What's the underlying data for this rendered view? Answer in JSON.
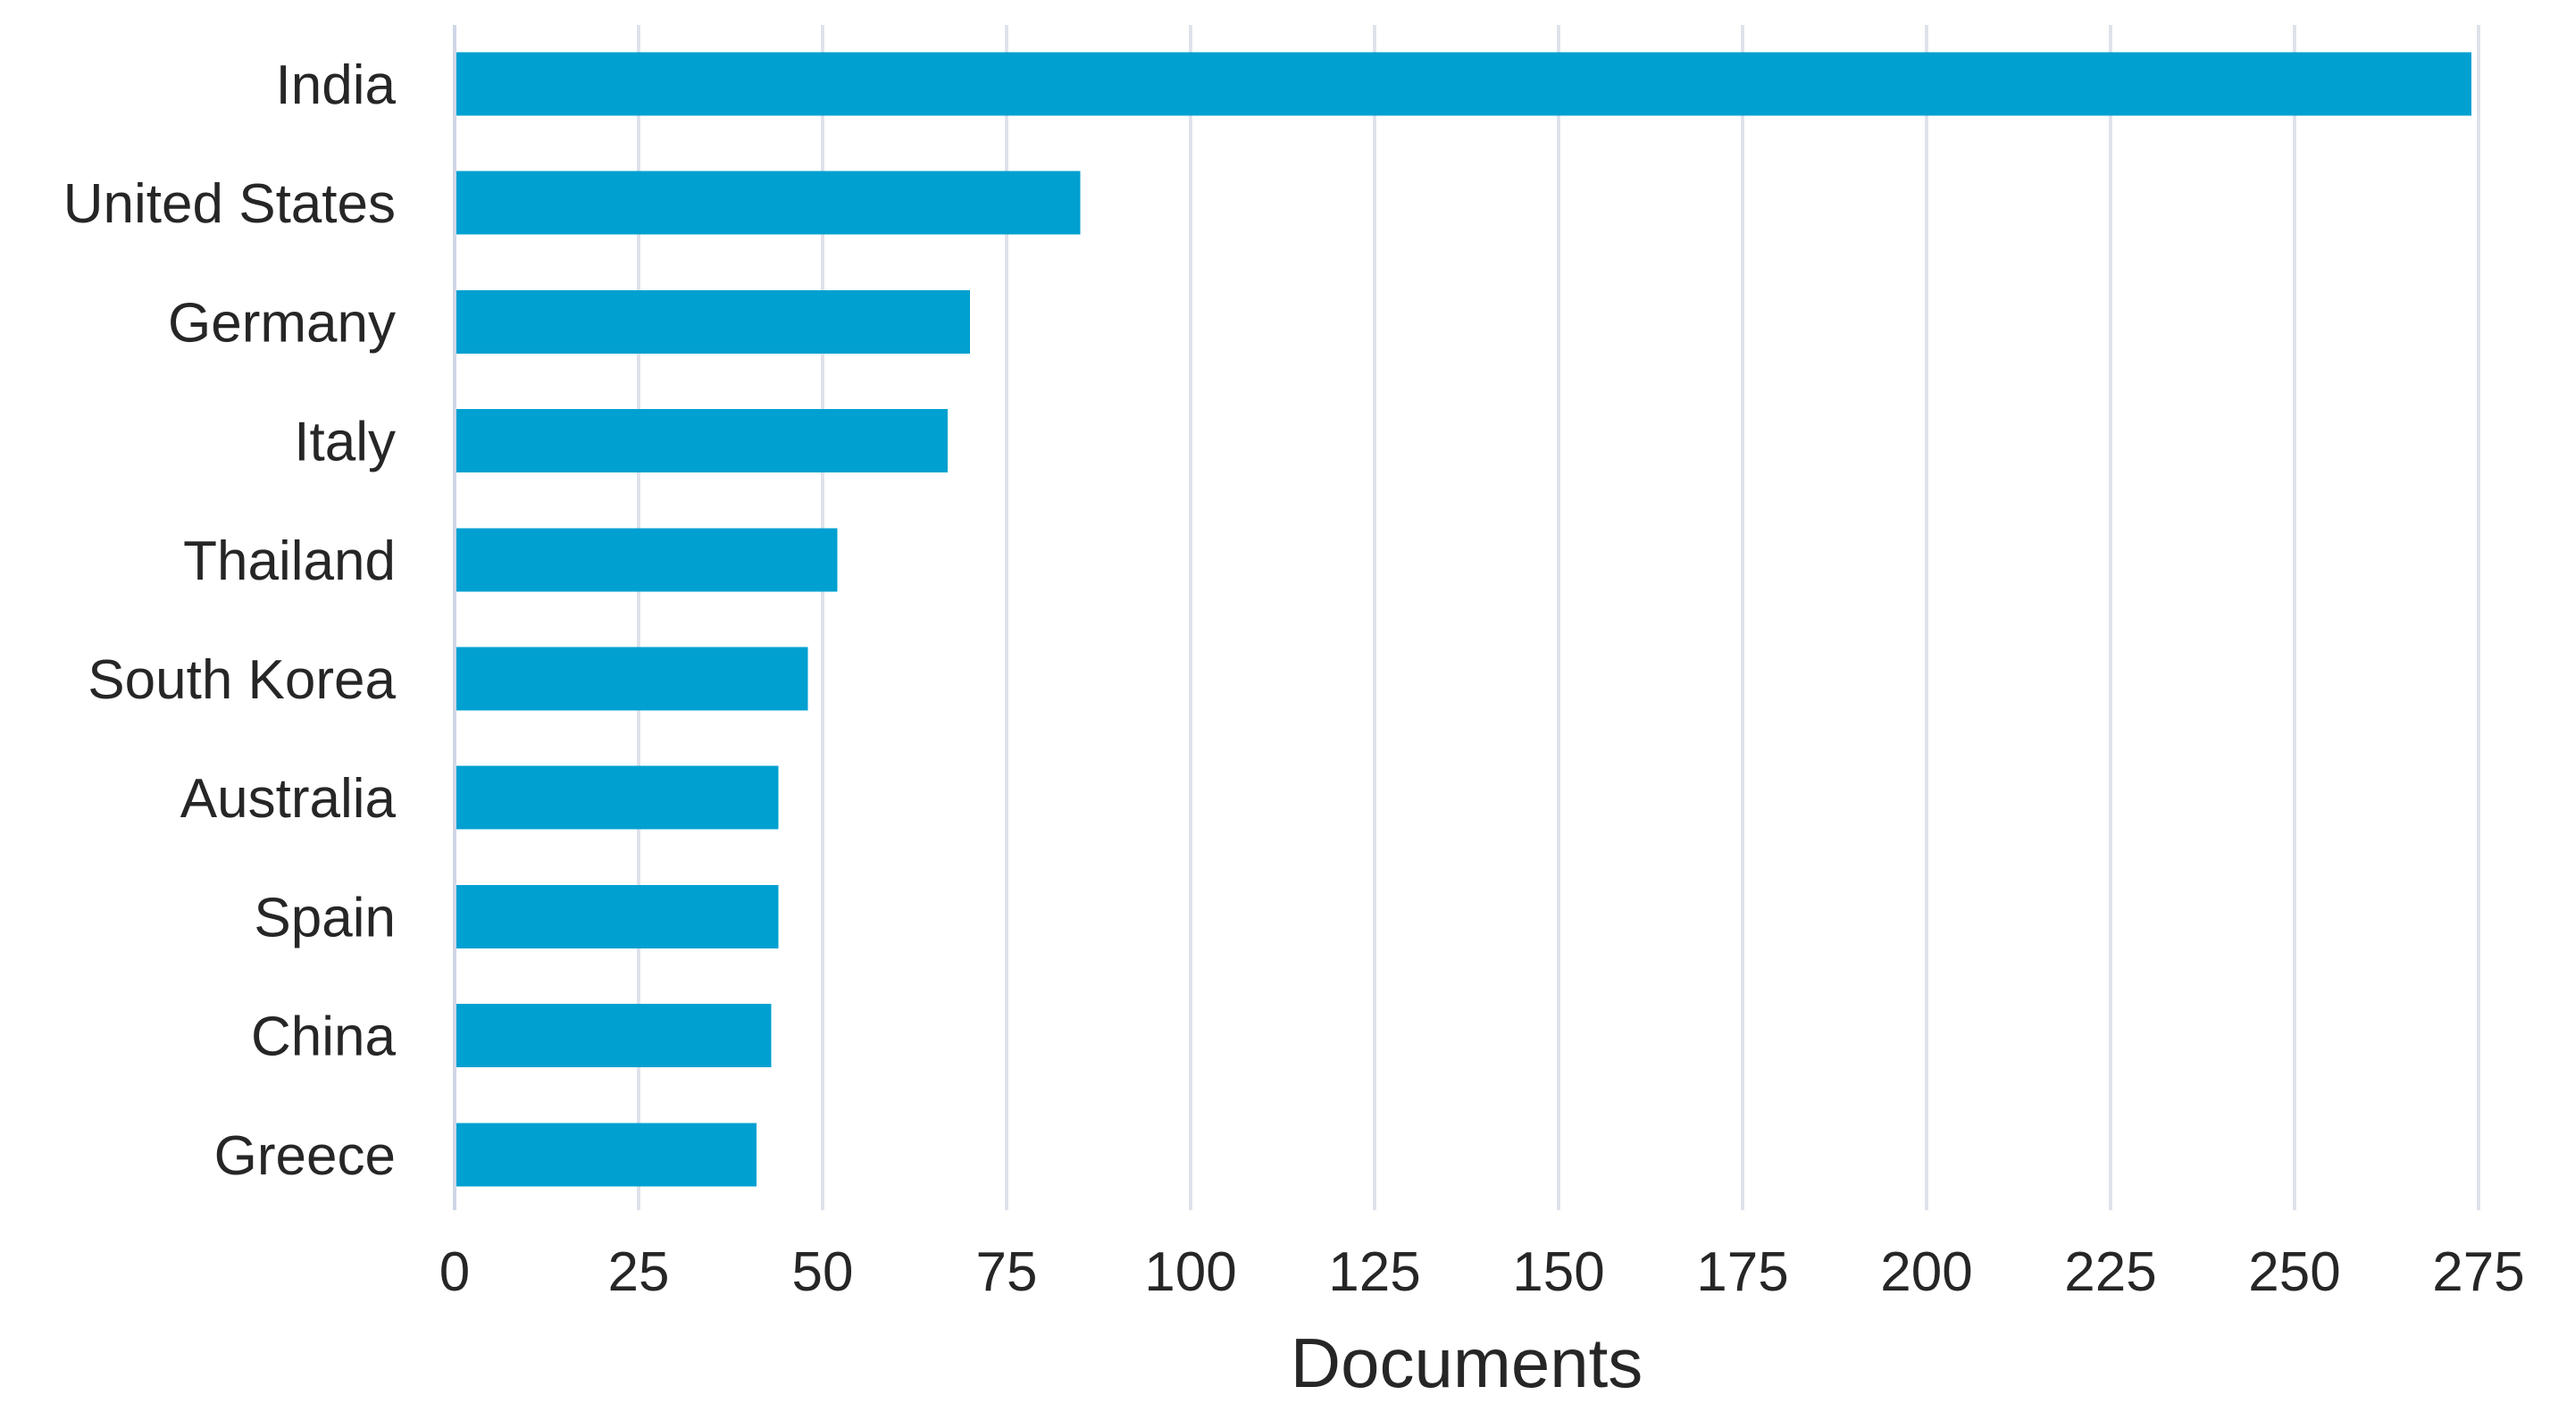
{
  "chart_data": {
    "type": "bar",
    "orientation": "horizontal",
    "categories": [
      "India",
      "United States",
      "Germany",
      "Italy",
      "Thailand",
      "South Korea",
      "Australia",
      "Spain",
      "China",
      "Greece"
    ],
    "series": [
      {
        "values": [
          274,
          85,
          70,
          67,
          52,
          48,
          44,
          44,
          43,
          41
        ]
      }
    ],
    "xlabel": "Documents",
    "ylabel": "",
    "title": "",
    "xlim": [
      0,
      275
    ],
    "xticks": [
      0,
      25,
      50,
      75,
      100,
      125,
      150,
      175,
      200,
      225,
      250,
      275
    ],
    "xtick_labels": [
      "0",
      "25",
      "50",
      "75",
      "100",
      "125",
      "150",
      "175",
      "200",
      "225",
      "250",
      "275"
    ],
    "grid": "vertical",
    "legend": "none",
    "bar_color": "#00a0d1"
  }
}
